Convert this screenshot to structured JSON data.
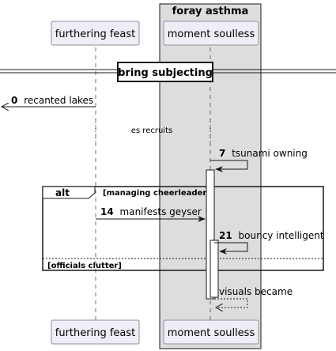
{
  "box": {
    "title": "foray asthma",
    "fill": "#dddddd"
  },
  "participants": {
    "p1": {
      "label": "furthering feast"
    },
    "p2": {
      "label": "moment soulless"
    }
  },
  "divider": {
    "label": "bring subjecting"
  },
  "messages": {
    "m0": {
      "num": "0",
      "text": "recanted lakes"
    },
    "delay": {
      "text": "es recruits"
    },
    "m7": {
      "num": "7",
      "text": "tsunami owning"
    },
    "m14": {
      "num": "14",
      "text": "manifests geyser"
    },
    "m21": {
      "num": "21",
      "text": "bouncy intelligent"
    },
    "ret": {
      "text": "visuals became"
    }
  },
  "alt": {
    "keyword": "alt",
    "guard1": "[managing cheerleader]",
    "guard2": "[officials clutter]"
  },
  "colors": {
    "participant_fill": "#eeeef6",
    "participant_border": "#8e8e9e",
    "line": "#181818"
  }
}
